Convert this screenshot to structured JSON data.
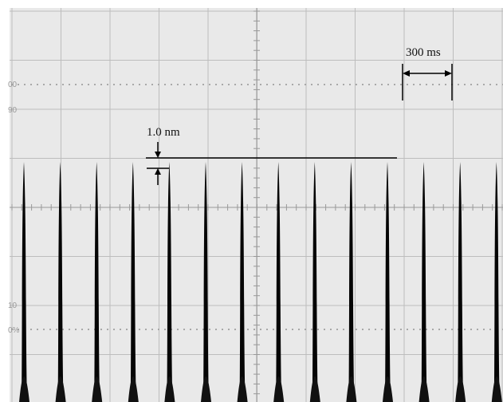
{
  "annotations": {
    "time_scale": "300 ms",
    "amplitude_scale": "1.0 nm"
  },
  "graticule_labels": [
    "00",
    "90",
    "10",
    "0%"
  ]
}
